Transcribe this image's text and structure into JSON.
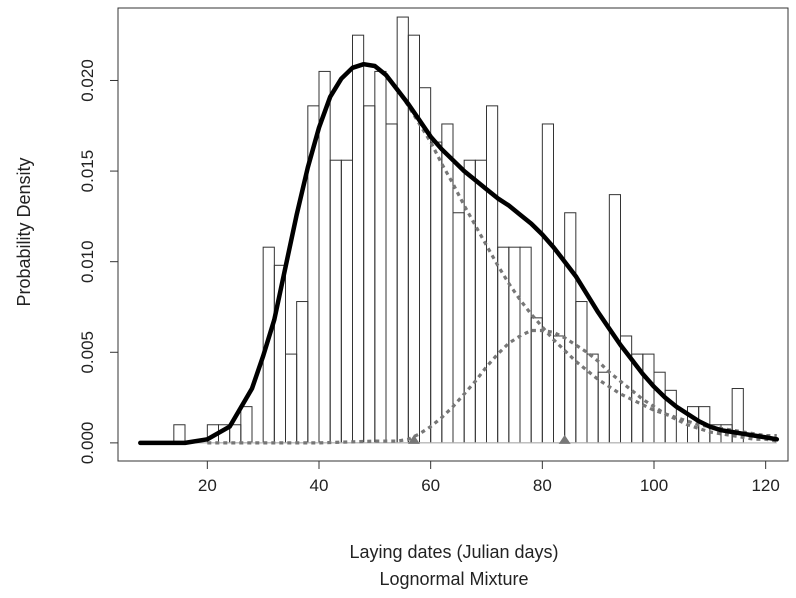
{
  "chart_data": {
    "type": "line",
    "title": "",
    "xlabel": "Laying dates (Julian days)",
    "xlabel_line2": "Lognormal Mixture",
    "ylabel": "Probability Density",
    "xlim": [
      4,
      124
    ],
    "ylim": [
      -0.001,
      0.024
    ],
    "x_ticks": [
      20,
      40,
      60,
      80,
      100,
      120
    ],
    "x_tick_labels": [
      "20",
      "40",
      "60",
      "80",
      "100",
      "120"
    ],
    "y_ticks": [
      0.0,
      0.005,
      0.01,
      0.015,
      0.02
    ],
    "y_tick_labels": [
      "0.000",
      "0.005",
      "0.010",
      "0.015",
      "0.020"
    ],
    "grid": false,
    "legend": "none",
    "histogram": {
      "bin_width": 2,
      "bin_starts": [
        8,
        10,
        12,
        14,
        16,
        18,
        20,
        22,
        24,
        26,
        28,
        30,
        32,
        34,
        36,
        38,
        40,
        42,
        44,
        46,
        48,
        50,
        52,
        54,
        56,
        58,
        60,
        62,
        64,
        66,
        68,
        70,
        72,
        74,
        76,
        78,
        80,
        82,
        84,
        86,
        88,
        90,
        92,
        94,
        96,
        98,
        100,
        102,
        104,
        106,
        108,
        110,
        112,
        114,
        116,
        118,
        120
      ],
      "density": [
        0,
        0,
        0,
        0.001,
        0,
        0,
        0.001,
        0.001,
        0.001,
        0.002,
        0,
        0.0108,
        0.0098,
        0.0049,
        0.0078,
        0.0186,
        0.0205,
        0.0156,
        0.0156,
        0.0225,
        0.0186,
        0.0205,
        0.0176,
        0.0235,
        0.0225,
        0.0196,
        0.0166,
        0.0176,
        0.0127,
        0.0156,
        0.0156,
        0.0186,
        0.0108,
        0.0108,
        0.0108,
        0.0069,
        0.0176,
        0.0059,
        0.0127,
        0.0078,
        0.0049,
        0.0039,
        0.0137,
        0.0059,
        0.0049,
        0.0049,
        0.0039,
        0.0029,
        0,
        0.002,
        0.002,
        0.001,
        0.001,
        0.003,
        0,
        0,
        0
      ]
    },
    "series": [
      {
        "role": "mixture",
        "style": "solid",
        "x": [
          8,
          16,
          20,
          24,
          28,
          30,
          32,
          34,
          36,
          38,
          40,
          42,
          44,
          46,
          48,
          50,
          52,
          54,
          56,
          58,
          60,
          62,
          64,
          66,
          68,
          70,
          72,
          74,
          76,
          78,
          80,
          82,
          84,
          86,
          88,
          90,
          92,
          94,
          96,
          98,
          100,
          102,
          104,
          106,
          108,
          110,
          112,
          114,
          116,
          118,
          120,
          122
        ],
        "y": [
          0.0,
          0.0,
          0.0002,
          0.0009,
          0.003,
          0.0048,
          0.0068,
          0.0097,
          0.0126,
          0.0152,
          0.0174,
          0.0191,
          0.0201,
          0.0207,
          0.0209,
          0.0208,
          0.0203,
          0.0195,
          0.0187,
          0.0178,
          0.0169,
          0.0162,
          0.0156,
          0.015,
          0.0145,
          0.014,
          0.0135,
          0.0131,
          0.0126,
          0.0121,
          0.0115,
          0.0108,
          0.01,
          0.0092,
          0.0082,
          0.0072,
          0.0063,
          0.0054,
          0.0046,
          0.0038,
          0.0031,
          0.0025,
          0.002,
          0.0016,
          0.0012,
          0.0009,
          0.0007,
          0.0006,
          0.0005,
          0.0004,
          0.0003,
          0.0002
        ]
      },
      {
        "role": "component-1",
        "style": "dashed",
        "x": [
          20,
          24,
          28,
          30,
          32,
          34,
          36,
          38,
          40,
          42,
          44,
          46,
          48,
          50,
          52,
          54,
          56,
          58,
          60,
          62,
          64,
          66,
          68,
          70,
          72,
          74,
          76,
          78,
          80,
          82,
          84,
          86,
          88,
          90,
          92,
          94,
          96,
          98,
          100,
          102,
          104,
          106,
          108,
          110,
          112,
          114,
          116,
          118,
          120,
          122
        ],
        "y": [
          0.0002,
          0.0009,
          0.003,
          0.0048,
          0.0068,
          0.0097,
          0.0126,
          0.0152,
          0.0174,
          0.0191,
          0.0201,
          0.0207,
          0.0209,
          0.0208,
          0.0203,
          0.0195,
          0.0186,
          0.0176,
          0.0166,
          0.0154,
          0.0143,
          0.0131,
          0.012,
          0.0109,
          0.0098,
          0.0088,
          0.0079,
          0.0071,
          0.0064,
          0.0057,
          0.0051,
          0.0045,
          0.004,
          0.0035,
          0.0031,
          0.0027,
          0.0024,
          0.0021,
          0.0018,
          0.0016,
          0.0014,
          0.0012,
          0.001,
          0.0009,
          0.0008,
          0.0007,
          0.0006,
          0.0005,
          0.0004,
          0.0004
        ]
      },
      {
        "role": "component-2",
        "style": "dashed",
        "x": [
          20,
          30,
          40,
          50,
          54,
          56,
          58,
          60,
          62,
          64,
          66,
          68,
          70,
          72,
          74,
          76,
          78,
          80,
          82,
          84,
          86,
          88,
          90,
          92,
          94,
          96,
          98,
          100,
          102,
          104,
          106,
          108,
          110,
          112,
          114,
          116,
          118,
          120,
          122
        ],
        "y": [
          0.0,
          0.0,
          0.0,
          0.0001,
          0.0001,
          0.0002,
          0.0005,
          0.0009,
          0.0014,
          0.002,
          0.0027,
          0.0034,
          0.0042,
          0.0049,
          0.0055,
          0.0059,
          0.0062,
          0.0062,
          0.0061,
          0.0058,
          0.0054,
          0.005,
          0.0045,
          0.0039,
          0.0034,
          0.0029,
          0.0024,
          0.002,
          0.0016,
          0.0013,
          0.001,
          0.0008,
          0.0006,
          0.0005,
          0.0004,
          0.0003,
          0.0002,
          0.0002,
          0.0001
        ]
      }
    ],
    "component_markers": [
      {
        "x": 57,
        "y": 0
      },
      {
        "x": 84,
        "y": 0
      }
    ],
    "colors": {
      "mixture": "#000000",
      "components": "#777777",
      "histogram": "#333333",
      "baseline": "#bbbbbb",
      "markers": "#777777"
    }
  }
}
